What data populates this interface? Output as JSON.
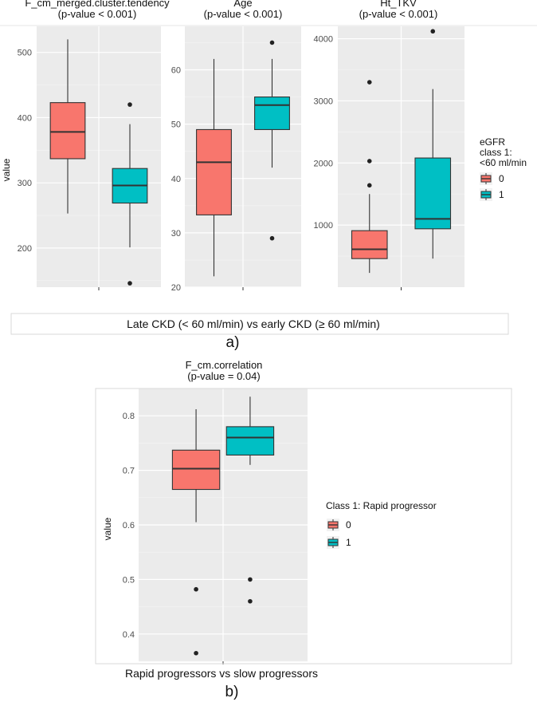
{
  "figure_a": {
    "xaxis_caption": "Late CKD (< 60 ml/min) vs early CKD (≥ 60 ml/min)",
    "caption": "a)",
    "ylabel": "value",
    "legend": {
      "title_lines": [
        "eGFR",
        "class 1:",
        "<60 ml/min"
      ],
      "items": [
        {
          "label": "0",
          "color": "#f8766d"
        },
        {
          "label": "1",
          "color": "#00bfc4"
        }
      ]
    }
  },
  "figure_b": {
    "xaxis_caption": "Rapid progressors vs slow progressors",
    "caption": "b)",
    "ylabel": "value",
    "legend": {
      "title": "Class 1: Rapid progressor",
      "items": [
        {
          "label": "0",
          "color": "#f8766d"
        },
        {
          "label": "1",
          "color": "#00bfc4"
        }
      ]
    }
  },
  "chart_data": [
    {
      "type": "box",
      "title": "F_cm_merged.cluster.tendency",
      "subtitle": "(p-value < 0.001)",
      "ylabel": "value",
      "ylim": [
        140,
        540
      ],
      "yticks": [
        200,
        300,
        400,
        500
      ],
      "series": [
        {
          "name": "0",
          "color": "#f8766d",
          "min": 253,
          "q1": 337,
          "median": 378,
          "q3": 423,
          "max": 520,
          "outliers": []
        },
        {
          "name": "1",
          "color": "#00bfc4",
          "min": 201,
          "q1": 269,
          "median": 296,
          "q3": 322,
          "max": 390,
          "outliers": [
            420,
            146
          ]
        }
      ]
    },
    {
      "type": "box",
      "title": "Age",
      "subtitle": "(p-value < 0.001)",
      "ylim": [
        20,
        68
      ],
      "yticks": [
        20,
        30,
        40,
        50,
        60
      ],
      "series": [
        {
          "name": "0",
          "color": "#f8766d",
          "min": 22,
          "q1": 33.3,
          "median": 43,
          "q3": 49,
          "max": 62,
          "outliers": []
        },
        {
          "name": "1",
          "color": "#00bfc4",
          "min": 42,
          "q1": 49,
          "median": 53.5,
          "q3": 55,
          "max": 62,
          "outliers": [
            65,
            29
          ]
        }
      ]
    },
    {
      "type": "box",
      "title": "Ht_TKV",
      "subtitle": "(p-value < 0.001)",
      "ylim": [
        0,
        4200
      ],
      "yticks": [
        1000,
        2000,
        3000,
        4000
      ],
      "series": [
        {
          "name": "0",
          "color": "#f8766d",
          "min": 230,
          "q1": 460,
          "median": 610,
          "q3": 910,
          "max": 1500,
          "outliers": [
            1640,
            2030,
            3300
          ]
        },
        {
          "name": "1",
          "color": "#00bfc4",
          "min": 460,
          "q1": 940,
          "median": 1100,
          "q3": 2080,
          "max": 3190,
          "outliers": [
            4120
          ]
        }
      ]
    },
    {
      "type": "box",
      "title": "F_cm.correlation",
      "subtitle": "(p-value = 0.04)",
      "ylabel": "value",
      "ylim": [
        0.35,
        0.85
      ],
      "yticks": [
        0.4,
        0.5,
        0.6,
        0.7,
        0.8
      ],
      "series": [
        {
          "name": "0",
          "color": "#f8766d",
          "min": 0.605,
          "q1": 0.665,
          "median": 0.703,
          "q3": 0.737,
          "max": 0.812,
          "outliers": [
            0.482,
            0.365
          ]
        },
        {
          "name": "1",
          "color": "#00bfc4",
          "min": 0.71,
          "q1": 0.728,
          "median": 0.76,
          "q3": 0.78,
          "max": 0.835,
          "outliers": [
            0.5,
            0.46
          ]
        }
      ]
    }
  ]
}
